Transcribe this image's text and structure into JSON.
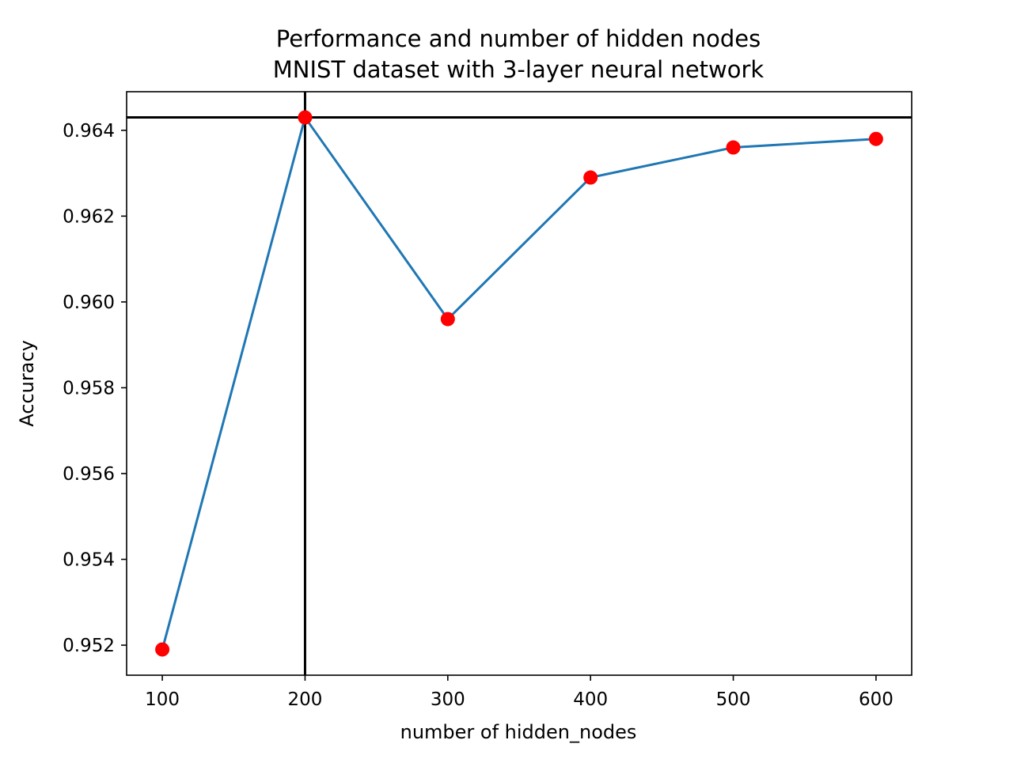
{
  "chart_data": {
    "type": "line",
    "title": [
      "Performance and number of hidden nodes",
      "MNIST dataset with 3-layer neural network"
    ],
    "xlabel": "number of hidden_nodes",
    "ylabel": "Accuracy",
    "x": [
      100,
      200,
      300,
      400,
      500,
      600
    ],
    "series": [
      {
        "values": [
          0.9519,
          0.9643,
          0.9596,
          0.9629,
          0.9636,
          0.9638
        ],
        "color": "#1f77b4",
        "marker_color": "#ff0000"
      }
    ],
    "xlim": [
      75,
      625
    ],
    "ylim": [
      0.9513,
      0.9649
    ],
    "xticks": [
      100,
      200,
      300,
      400,
      500,
      600
    ],
    "xtick_labels": [
      "100",
      "200",
      "300",
      "400",
      "500",
      "600"
    ],
    "yticks": [
      0.952,
      0.954,
      0.956,
      0.958,
      0.96,
      0.962,
      0.964
    ],
    "ytick_labels": [
      "0.952",
      "0.954",
      "0.956",
      "0.958",
      "0.960",
      "0.962",
      "0.964"
    ],
    "reference_lines": {
      "vertical_x": 200,
      "horizontal_y": 0.9643,
      "color": "#000000"
    },
    "grid": false,
    "legend": "none"
  }
}
